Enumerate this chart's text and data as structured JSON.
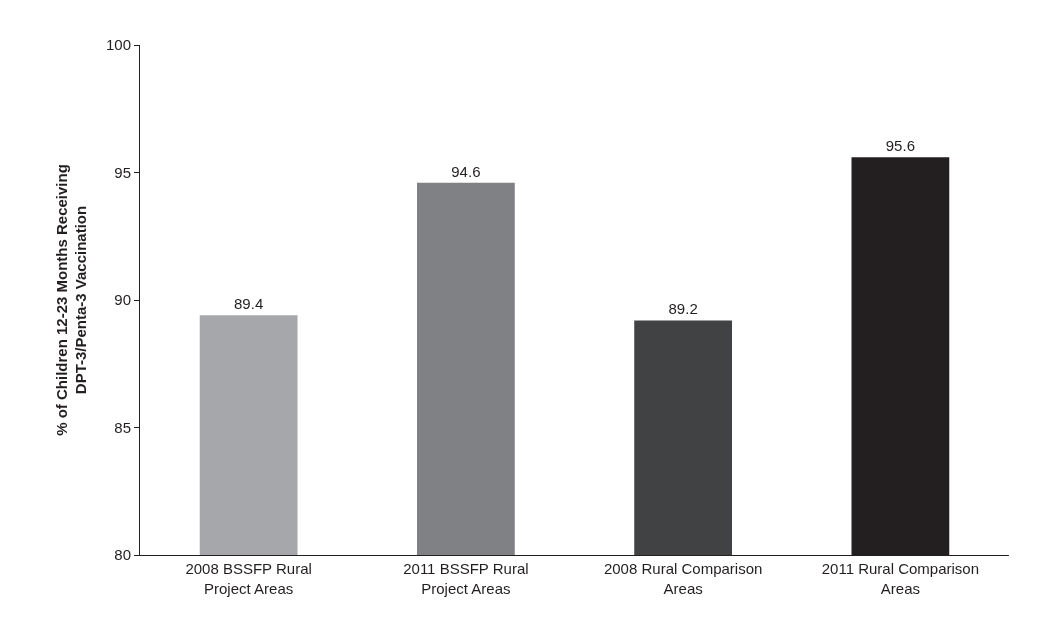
{
  "chart_data": {
    "type": "bar",
    "ylabel": "% of Children 12-23 Months Receiving DPT-3/Penta-3 Vaccination",
    "categories": [
      "2008 BSSFP Rural Project Areas",
      "2011 BSSFP Rural Project Areas",
      "2008 Rural Comparison Areas",
      "2011 Rural Comparison Areas"
    ],
    "values": [
      89.4,
      94.6,
      89.2,
      95.6
    ],
    "colors": [
      "#a6a7aa",
      "#808184",
      "#414244",
      "#231f20"
    ],
    "ylim": [
      80,
      100
    ],
    "yticks": [
      80,
      85,
      90,
      95,
      100
    ],
    "data_labels": true
  }
}
